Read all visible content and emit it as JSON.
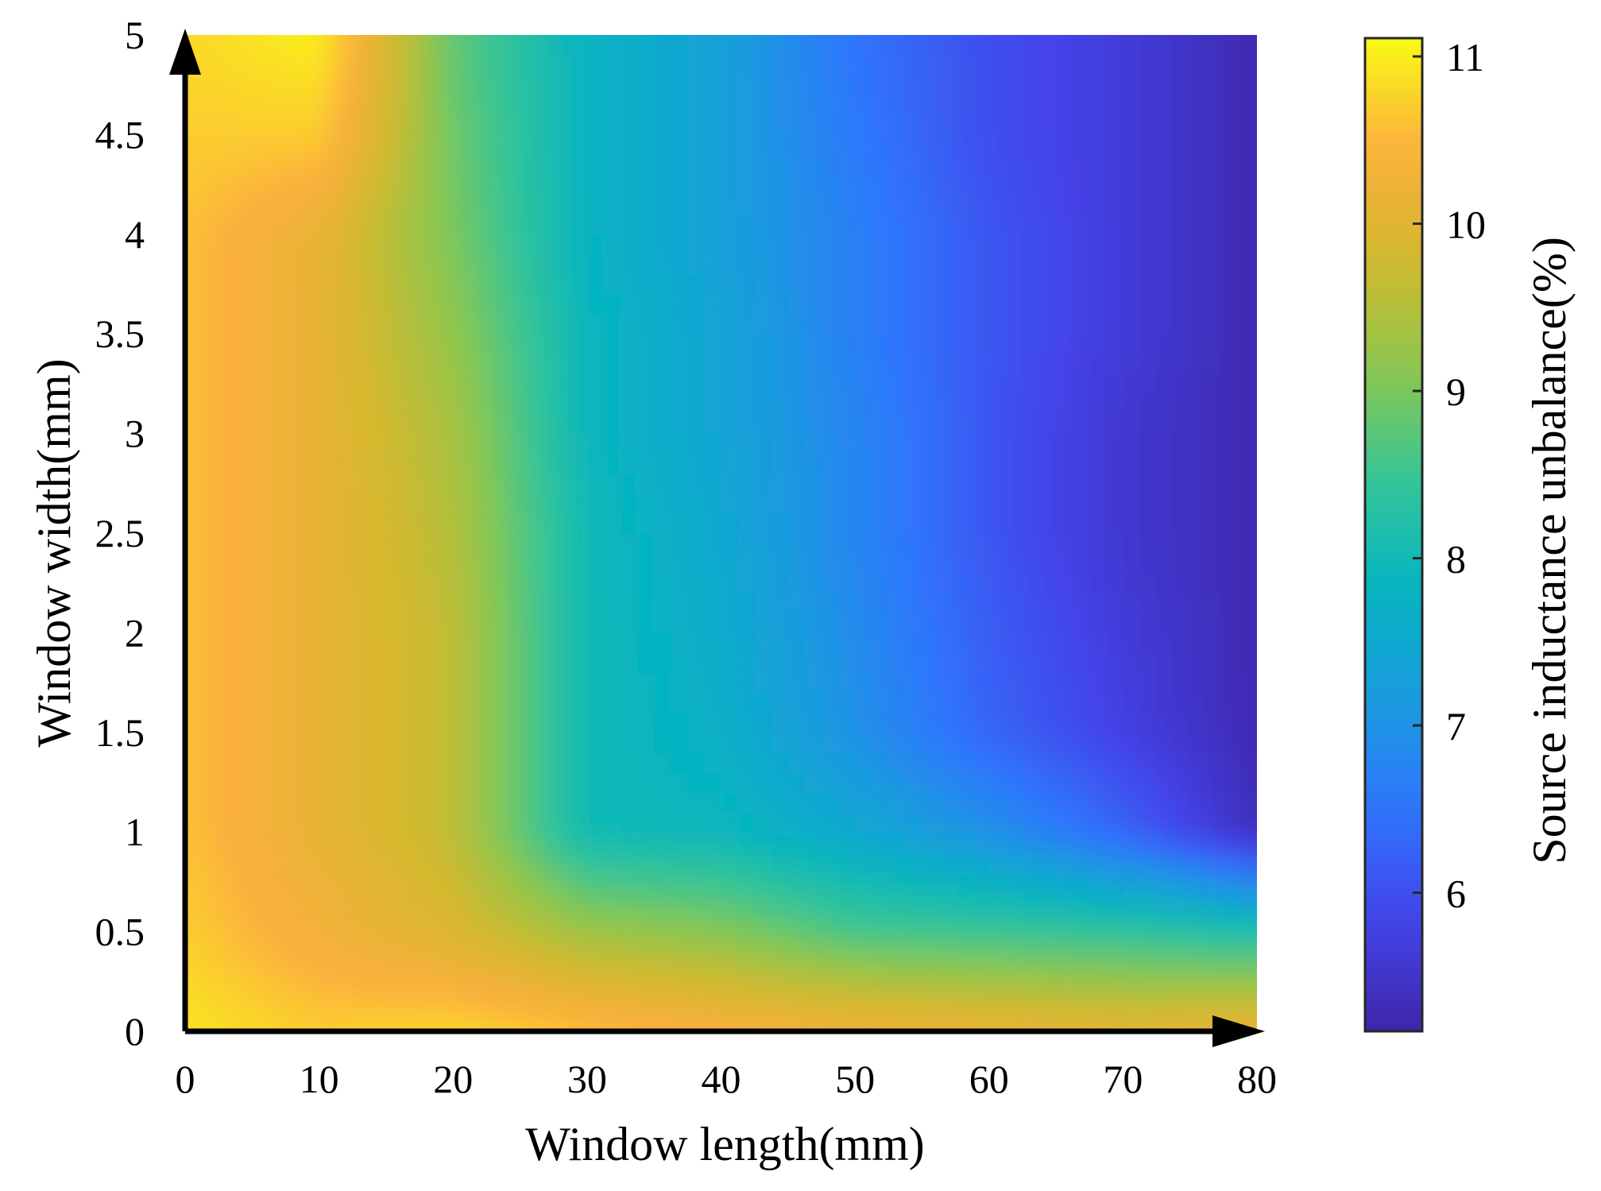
{
  "chart_data": {
    "type": "heatmap",
    "title": "",
    "xlabel": "Window length(mm)",
    "ylabel": "Window width(mm)",
    "colorbar_label": "Source inductance unbalance(%)",
    "x_ticks": [
      "0",
      "10",
      "20",
      "30",
      "40",
      "50",
      "60",
      "70",
      "80"
    ],
    "y_ticks": [
      "0",
      "0.5",
      "1",
      "1.5",
      "2",
      "2.5",
      "3",
      "3.5",
      "4",
      "4.5",
      "5"
    ],
    "colorbar_ticks": [
      "6",
      "7",
      "8",
      "9",
      "10",
      "11"
    ],
    "xlim": [
      0,
      80
    ],
    "ylim": [
      0,
      5
    ],
    "clim": [
      5.2,
      11.1
    ],
    "colormap": "parula",
    "colormap_stops": [
      "#3e26a8",
      "#4443e8",
      "#2f75fe",
      "#1a9bde",
      "#05b4c1",
      "#35c597",
      "#8cc74e",
      "#d4b82d",
      "#fcaf3e",
      "#f9fb15"
    ],
    "grid": false,
    "legend": "colorbar-right",
    "x": [
      0,
      10,
      20,
      30,
      40,
      50,
      60,
      70,
      80
    ],
    "y": [
      0,
      0.5,
      1,
      1.5,
      2,
      2.5,
      3,
      3.5,
      4,
      4.5,
      5
    ],
    "z": [
      [
        10.9,
        10.7,
        10.8,
        10.6,
        10.4,
        10.3,
        10.2,
        10.1,
        10.2
      ],
      [
        10.7,
        10.3,
        9.9,
        9.3,
        9.1,
        8.6,
        8.5,
        8.4,
        8.2
      ],
      [
        10.6,
        10.1,
        9.6,
        8.0,
        7.9,
        7.5,
        7.0,
        6.3,
        5.4
      ],
      [
        10.6,
        10.1,
        9.6,
        8.0,
        7.7,
        7.0,
        6.3,
        5.8,
        5.3
      ],
      [
        10.6,
        10.1,
        9.6,
        8.0,
        7.6,
        6.9,
        6.2,
        5.7,
        5.3
      ],
      [
        10.6,
        10.1,
        9.5,
        8.0,
        7.5,
        6.8,
        6.1,
        5.6,
        5.3
      ],
      [
        10.6,
        10.1,
        9.4,
        7.9,
        7.4,
        6.8,
        6.1,
        5.6,
        5.3
      ],
      [
        10.6,
        10.1,
        9.2,
        7.9,
        7.4,
        6.7,
        6.1,
        5.7,
        5.3
      ],
      [
        10.6,
        10.1,
        9.0,
        7.8,
        7.3,
        6.7,
        6.1,
        5.7,
        5.3
      ],
      [
        10.7,
        10.7,
        8.9,
        7.8,
        7.3,
        6.6,
        6.0,
        5.7,
        5.3
      ],
      [
        10.8,
        11.0,
        8.8,
        7.8,
        7.3,
        6.5,
        6.0,
        5.7,
        5.3
      ]
    ]
  }
}
